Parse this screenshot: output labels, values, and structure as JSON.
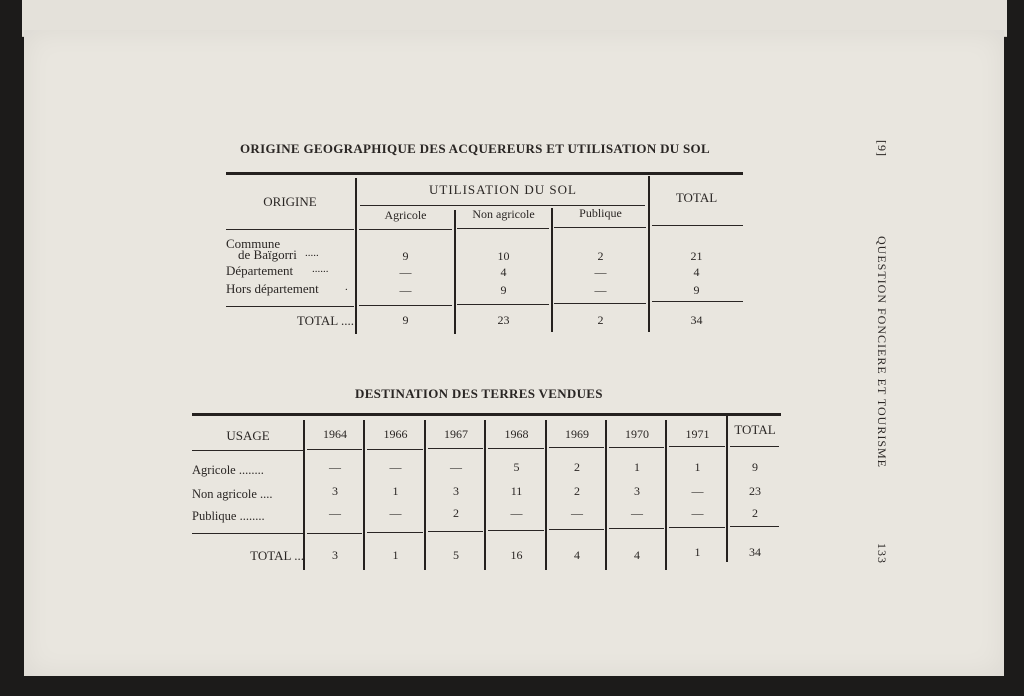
{
  "running_header": {
    "chapter": "[9]",
    "title": "QUESTION FONCIERE ET TOURISME",
    "page_number": "133"
  },
  "table1": {
    "title": "ORIGINE GEOGRAPHIQUE DES ACQUEREURS ET UTILISATION DU SOL",
    "header_origin": "ORIGINE",
    "header_group": "UTILISATION DU SOL",
    "header_total": "TOTAL",
    "subheaders": [
      "Agricole",
      "Non agricole",
      "Publique"
    ],
    "rows": [
      {
        "label_line1": "Commune",
        "label": "de Baïgorri",
        "leader": ".....",
        "values": [
          "9",
          "10",
          "2",
          "21"
        ]
      },
      {
        "label": "Département",
        "leader": "......",
        "values": [
          "—",
          "4",
          "—",
          "4"
        ]
      },
      {
        "label": "Hors département",
        "leader": ".",
        "values": [
          "—",
          "9",
          "—",
          "9"
        ]
      }
    ],
    "total": {
      "label": "TOTAL ....",
      "values": [
        "9",
        "23",
        "2",
        "34"
      ]
    }
  },
  "table2": {
    "title": "DESTINATION DES TERRES VENDUES",
    "header_usage": "USAGE",
    "years": [
      "1964",
      "1966",
      "1967",
      "1968",
      "1969",
      "1970",
      "1971",
      "TOTAL"
    ],
    "rows": [
      {
        "label": "Agricole ........",
        "values": [
          "—",
          "—",
          "—",
          "5",
          "2",
          "1",
          "1",
          "9"
        ]
      },
      {
        "label": "Non agricole ....",
        "values": [
          "3",
          "1",
          "3",
          "11",
          "2",
          "3",
          "—",
          "23"
        ]
      },
      {
        "label": "Publique ........",
        "values": [
          "—",
          "—",
          "2",
          "—",
          "—",
          "—",
          "—",
          "2"
        ]
      }
    ],
    "total": {
      "label": "TOTAL ...",
      "values": [
        "3",
        "1",
        "5",
        "16",
        "4",
        "4",
        "1",
        "34"
      ]
    }
  }
}
